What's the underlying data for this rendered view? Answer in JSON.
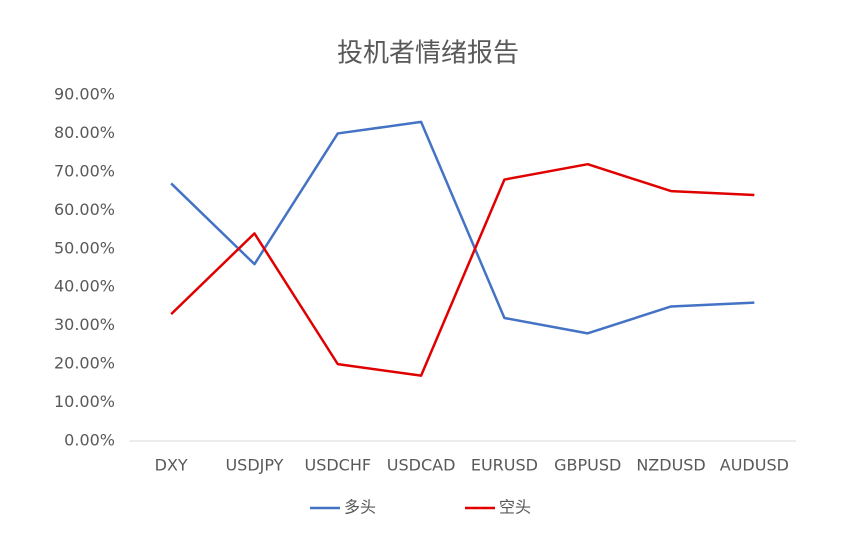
{
  "chart_data": {
    "type": "line",
    "title": "投机者情绪报告",
    "categories": [
      "DXY",
      "USDJPY",
      "USDCHF",
      "USDCAD",
      "EURUSD",
      "GBPUSD",
      "NZDUSD",
      "AUDUSD"
    ],
    "series": [
      {
        "name": "多头",
        "color": "#4472c4",
        "values": [
          67,
          46,
          80,
          83,
          32,
          28,
          35,
          36
        ]
      },
      {
        "name": "空头",
        "color": "#e00000",
        "values": [
          33,
          54,
          20,
          17,
          68,
          72,
          65,
          64
        ]
      }
    ],
    "ylim": [
      0,
      90
    ],
    "yticks": [
      {
        "value": 0,
        "label": "0.00%"
      },
      {
        "value": 10,
        "label": "10.00%"
      },
      {
        "value": 20,
        "label": "20.00%"
      },
      {
        "value": 30,
        "label": "30.00%"
      },
      {
        "value": 40,
        "label": "40.00%"
      },
      {
        "value": 50,
        "label": "50.00%"
      },
      {
        "value": 60,
        "label": "60.00%"
      },
      {
        "value": 70,
        "label": "70.00%"
      },
      {
        "value": 80,
        "label": "80.00%"
      },
      {
        "value": 90,
        "label": "90.00%"
      }
    ],
    "grid": false,
    "legend": "bottom"
  }
}
